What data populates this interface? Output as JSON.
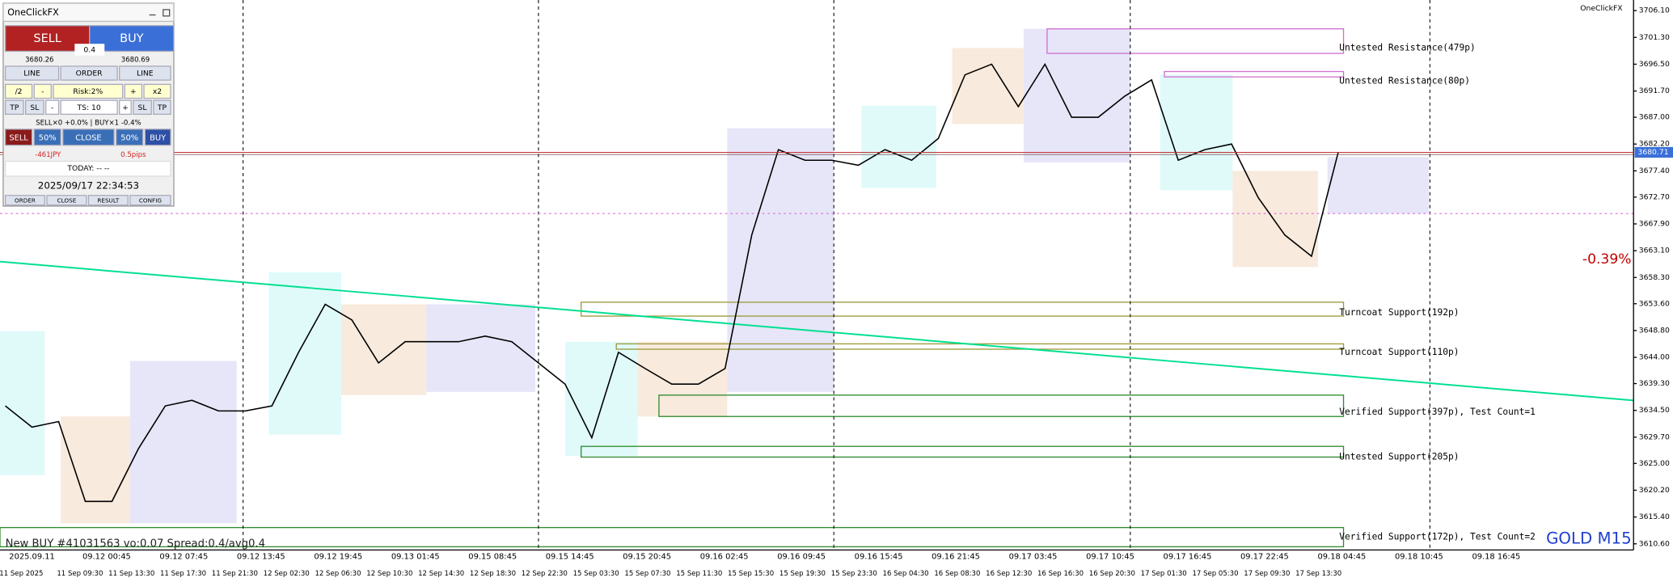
{
  "panel": {
    "title": "OneClickFX",
    "sell": "SELL",
    "buy": "BUY",
    "spread": "0.4",
    "bid": "3680.26",
    "ask": "3680.69",
    "rows": [
      [
        "LINE",
        "ORDER",
        "LINE"
      ],
      [
        "/2",
        "-",
        "Risk:2%",
        "+",
        "x2"
      ],
      [
        "TP",
        "SL",
        "-",
        "TS: 10",
        "+",
        "SL",
        "TP"
      ]
    ],
    "positions": "SELL×0 +0.0% | BUY×1 -0.4%",
    "actions": [
      "SELL",
      "50%",
      "CLOSE",
      "50%",
      "BUY"
    ],
    "pnl": "-461JPY",
    "pips": "0.5pips",
    "today": "TODAY: -- --",
    "clock": "2025/09/17  22:34:53",
    "footer": [
      "ORDER",
      "CLOSE",
      "RESULT",
      "CONFIG"
    ]
  },
  "brand": "OneClickFX",
  "symbol": "GOLD M15",
  "change": "-0.39%",
  "status": "New BUY #41031563 vo:0.07 Spread:0.4/avg0.4",
  "zones": [
    "Untested Resistance(479p)",
    "Untested Resistance(80p)",
    "Turncoat Support(192p)",
    "Turncoat Support(110p)",
    "Verified Support(397p), Test Count=1",
    "Untested Support(205p)",
    "Verified Support(172p), Test Count=2"
  ],
  "chart_data": {
    "type": "line",
    "color": "#000000",
    "values": [
      3635.3,
      3631.5,
      3632.5,
      3618.2,
      3618.2,
      3627.7,
      3635.3,
      3636.3,
      3634.4,
      3634.4,
      3635.3,
      3644.9,
      3653.5,
      3650.7,
      3643.0,
      3646.8,
      3646.8,
      3646.8,
      3647.8,
      3646.8,
      3643.0,
      3639.2,
      3629.6,
      3644.9,
      3642.0,
      3639.2,
      3639.2,
      3642.0,
      3665.9,
      3681.2,
      3679.3,
      3679.3,
      3678.4,
      3681.2,
      3679.3,
      3683.2,
      3694.6,
      3696.5,
      3688.9,
      3696.5,
      3687.0,
      3687.0,
      3690.8,
      3693.7,
      3679.3,
      3681.2,
      3682.2,
      3672.6,
      3665.9,
      3662.1,
      3680.7
    ],
    "current_price": 3680.71,
    "ylim": [
      3609.5,
      3708.0
    ],
    "yticks": [
      {
        "value": 3706.1,
        "label": "3706.10"
      },
      {
        "value": 3701.3,
        "label": "3701.30"
      },
      {
        "value": 3696.5,
        "label": "3696.50"
      },
      {
        "value": 3691.7,
        "label": "3691.70"
      },
      {
        "value": 3687.0,
        "label": "3687.00"
      },
      {
        "value": 3682.2,
        "label": "3682.20"
      },
      {
        "value": 3677.4,
        "label": "3677.40"
      },
      {
        "value": 3672.7,
        "label": "3672.70"
      },
      {
        "value": 3667.9,
        "label": "3667.90"
      },
      {
        "value": 3663.1,
        "label": "3663.10"
      },
      {
        "value": 3658.3,
        "label": "3658.30"
      },
      {
        "value": 3653.6,
        "label": "3653.60"
      },
      {
        "value": 3648.8,
        "label": "3648.80"
      },
      {
        "value": 3644.0,
        "label": "3644.00"
      },
      {
        "value": 3639.3,
        "label": "3639.30"
      },
      {
        "value": 3634.5,
        "label": "3634.50"
      },
      {
        "value": 3629.7,
        "label": "3629.70"
      },
      {
        "value": 3625.0,
        "label": "3625.00"
      },
      {
        "value": 3620.2,
        "label": "3620.20"
      },
      {
        "value": 3615.4,
        "label": "3615.40"
      },
      {
        "value": 3610.6,
        "label": "3610.60"
      }
    ],
    "time_labels": [
      "2025.09.11",
      "09.12 00:45",
      "09.12 07:45",
      "09.12 13:45",
      "09.12 19:45",
      "09.13 01:45",
      "09.15 08:45",
      "09.15 14:45",
      "09.15 20:45",
      "09.16 02:45",
      "09.16 09:45",
      "09.16 15:45",
      "09.16 21:45",
      "09.17 03:45",
      "09.17 10:45",
      "09.17 16:45",
      "09.17 22:45",
      "09.18 04:45",
      "09.18 10:45",
      "09.18 16:45"
    ],
    "date_labels": [
      "11 Sep 2025",
      "11 Sep 09:30",
      "11 Sep 13:30",
      "11 Sep 17:30",
      "11 Sep 21:30",
      "12 Sep 02:30",
      "12 Sep 06:30",
      "12 Sep 10:30",
      "12 Sep 14:30",
      "12 Sep 18:30",
      "12 Sep 22:30",
      "15 Sep 03:30",
      "15 Sep 07:30",
      "15 Sep 11:30",
      "15 Sep 15:30",
      "15 Sep 19:30",
      "15 Sep 23:30",
      "16 Sep 04:30",
      "16 Sep 08:30",
      "16 Sep 12:30",
      "16 Sep 16:30",
      "16 Sep 20:30",
      "17 Sep 01:30",
      "17 Sep 05:30",
      "17 Sep 09:30",
      "17 Sep 13:30"
    ]
  }
}
